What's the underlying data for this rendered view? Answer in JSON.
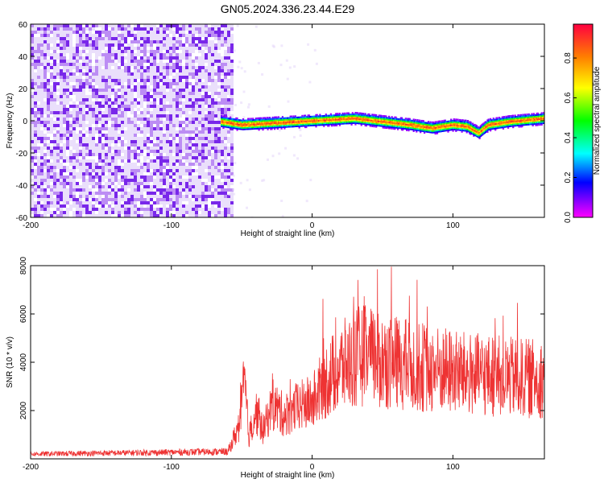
{
  "title": "GN05.2024.336.23.44.E29",
  "chart_data": [
    {
      "type": "heatmap",
      "xlabel": "Height of straight line (km)",
      "ylabel": "Frequency (Hz)",
      "xlim": [
        -200,
        165
      ],
      "ylim": [
        -60,
        60
      ],
      "x_ticks": [
        -200,
        -100,
        0,
        100
      ],
      "y_ticks": [
        -60,
        -40,
        -20,
        0,
        20,
        40,
        60
      ],
      "noise_region_x": [
        -200,
        -60
      ],
      "signal_centerline": {
        "x": [
          -65,
          -50,
          -30,
          -10,
          10,
          30,
          50,
          70,
          85,
          100,
          110,
          118,
          125,
          140,
          165
        ],
        "y": [
          0,
          -2,
          -1,
          0,
          1,
          2,
          0,
          -2,
          -4,
          -2,
          -3,
          -7,
          -2,
          0,
          2
        ]
      },
      "colorbar": {
        "label": "Normalized spectral amplitude",
        "ticks": [
          0.0,
          0.2,
          0.4,
          0.6,
          0.8
        ],
        "range": [
          0,
          0.97
        ]
      },
      "grid": false
    },
    {
      "type": "line",
      "xlabel": "Height of straight line (km)",
      "ylabel": "SNR (10 * v/v)",
      "xlim": [
        -200,
        165
      ],
      "ylim": [
        0,
        8000
      ],
      "x_ticks": [
        -200,
        -100,
        0,
        100
      ],
      "y_ticks": [
        2000,
        4000,
        6000,
        8000
      ],
      "series": [
        {
          "color": "#ee3333",
          "envelope": {
            "x": [
              -200,
              -60,
              -52,
              -48,
              -45,
              -40,
              -35,
              -28,
              -20,
              -10,
              0,
              10,
              20,
              35,
              50,
              70,
              90,
              110,
              130,
              150,
              165
            ],
            "y": [
              200,
              300,
              1500,
              3500,
              1000,
              2200,
              1300,
              2500,
              2000,
              2400,
              2600,
              3600,
              4200,
              4800,
              4500,
              4300,
              4100,
              3900,
              3800,
              3700,
              3700
            ]
          }
        }
      ],
      "grid": false
    }
  ]
}
